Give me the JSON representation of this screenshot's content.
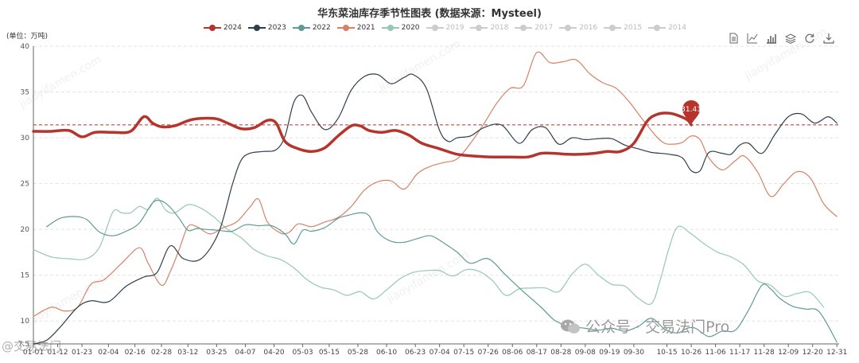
{
  "chart_data": {
    "type": "line",
    "title": "华东菜油库存季节性图表 (数据来源：Mysteel)",
    "ylabel": "(单位：万吨)",
    "ylim": [
      7.5,
      40
    ],
    "yticks": [
      7.5,
      10,
      15,
      20,
      25,
      30,
      35,
      40
    ],
    "xlim": [
      0,
      365
    ],
    "x_ticks": [
      {
        "label": "01-01",
        "day": 0
      },
      {
        "label": "01-12",
        "day": 11
      },
      {
        "label": "01-23",
        "day": 22
      },
      {
        "label": "02-04",
        "day": 34
      },
      {
        "label": "02-16",
        "day": 46
      },
      {
        "label": "02-28",
        "day": 58
      },
      {
        "label": "03-12",
        "day": 70
      },
      {
        "label": "03-25",
        "day": 83
      },
      {
        "label": "04-07",
        "day": 96
      },
      {
        "label": "04-20",
        "day": 109
      },
      {
        "label": "05-03",
        "day": 122
      },
      {
        "label": "05-15",
        "day": 134
      },
      {
        "label": "05-28",
        "day": 147
      },
      {
        "label": "06-10",
        "day": 160
      },
      {
        "label": "06-23",
        "day": 173
      },
      {
        "label": "07-04",
        "day": 184
      },
      {
        "label": "07-15",
        "day": 195
      },
      {
        "label": "07-26",
        "day": 206
      },
      {
        "label": "08-06",
        "day": 217
      },
      {
        "label": "08-17",
        "day": 228
      },
      {
        "label": "08-28",
        "day": 239
      },
      {
        "label": "09-08",
        "day": 250
      },
      {
        "label": "09-19",
        "day": 261
      },
      {
        "label": "09-30",
        "day": 272
      },
      {
        "label": "10-15",
        "day": 287
      },
      {
        "label": "10-26",
        "day": 298
      },
      {
        "label": "11-06",
        "day": 309
      },
      {
        "label": "11-17",
        "day": 320
      },
      {
        "label": "11-28",
        "day": 331
      },
      {
        "label": "12-09",
        "day": 342
      },
      {
        "label": "12-20",
        "day": 353
      },
      {
        "label": "12-31",
        "day": 364
      }
    ],
    "reference_line": 31.41,
    "mark_point": {
      "label": "31.41",
      "day": 298,
      "value": 31.41
    },
    "series": [
      {
        "name": "2024",
        "color": "#b5352d",
        "active": true,
        "width": 3.5,
        "x": [
          0,
          8,
          16,
          22,
          28,
          36,
          44,
          50,
          54,
          58,
          64,
          72,
          82,
          88,
          94,
          100,
          106,
          110,
          114,
          120,
          126,
          132,
          138,
          144,
          148,
          152,
          158,
          164,
          170,
          176,
          184,
          192,
          200,
          208,
          216,
          224,
          230,
          236,
          242,
          248,
          254,
          260,
          266,
          272,
          278,
          282,
          286,
          290,
          296,
          298
        ],
        "y": [
          30.7,
          30.7,
          30.8,
          30.1,
          30.6,
          30.6,
          30.7,
          32.3,
          31.6,
          31.2,
          31.3,
          32.0,
          32.1,
          31.6,
          31.0,
          31.1,
          31.9,
          31.6,
          29.6,
          28.8,
          28.5,
          28.9,
          30.2,
          31.3,
          31.3,
          30.8,
          30.6,
          30.8,
          30.3,
          29.4,
          28.8,
          28.2,
          28.0,
          27.9,
          27.9,
          27.9,
          28.3,
          28.3,
          28.2,
          28.2,
          28.3,
          28.5,
          28.5,
          29.4,
          31.8,
          32.5,
          32.7,
          32.6,
          32.0,
          31.41
        ]
      },
      {
        "name": "2023",
        "color": "#2f3e4c",
        "active": true,
        "width": 1.2,
        "x": [
          0,
          6,
          12,
          20,
          26,
          34,
          42,
          50,
          56,
          62,
          68,
          76,
          84,
          90,
          94,
          98,
          104,
          110,
          114,
          118,
          122,
          126,
          132,
          138,
          144,
          150,
          156,
          162,
          168,
          172,
          178,
          184,
          188,
          192,
          198,
          204,
          212,
          220,
          226,
          232,
          238,
          244,
          250,
          256,
          262,
          268,
          274,
          280,
          288,
          294,
          298,
          302,
          306,
          312,
          316,
          320,
          324,
          330,
          336,
          342,
          348,
          354,
          360,
          364
        ],
        "y": [
          7.5,
          7.9,
          9.3,
          11.5,
          12.2,
          12.1,
          13.8,
          14.8,
          15.3,
          18.2,
          16.8,
          16.8,
          19.7,
          24.8,
          27.5,
          28.3,
          28.5,
          28.7,
          30.2,
          33.9,
          34.6,
          32.8,
          30.9,
          32.1,
          35.2,
          36.7,
          36.9,
          35.9,
          36.6,
          36.9,
          35.4,
          30.8,
          29.6,
          30.0,
          30.2,
          31.1,
          31.4,
          29.4,
          30.9,
          31.1,
          29.3,
          30.0,
          29.8,
          29.9,
          29.9,
          29.2,
          28.8,
          28.4,
          28.2,
          27.8,
          26.4,
          26.4,
          28.4,
          28.3,
          28.2,
          29.2,
          29.4,
          28.3,
          30.4,
          32.3,
          32.6,
          31.6,
          32.3,
          31.6
        ]
      },
      {
        "name": "2022",
        "color": "#5e9b98",
        "active": true,
        "width": 1.2,
        "x": [
          6,
          12,
          18,
          24,
          30,
          36,
          42,
          48,
          54,
          58,
          62,
          66,
          70,
          74,
          78,
          84,
          90,
          96,
          102,
          108,
          114,
          118,
          122,
          126,
          132,
          138,
          142,
          148,
          152,
          156,
          162,
          168,
          174,
          180,
          186,
          192,
          198,
          206,
          214,
          222,
          230,
          236,
          242,
          250,
          256,
          262,
          268,
          274,
          280,
          286,
          292,
          296,
          300,
          306,
          312,
          318,
          324,
          330,
          334,
          338,
          344,
          350,
          356,
          364
        ],
        "y": [
          20.3,
          21.2,
          21.4,
          21.1,
          19.7,
          19.3,
          19.8,
          20.7,
          22.9,
          23.1,
          22.4,
          21.2,
          19.9,
          20.1,
          20.0,
          19.9,
          19.8,
          20.5,
          20.4,
          20.4,
          19.5,
          18.4,
          19.9,
          19.8,
          20.2,
          21.2,
          21.5,
          21.8,
          21.5,
          19.7,
          18.7,
          18.6,
          19.0,
          19.3,
          18.5,
          17.5,
          16.3,
          16.8,
          15.0,
          13.2,
          11.5,
          10.1,
          9.5,
          9.2,
          9.0,
          9.2,
          8.9,
          9.4,
          10.3,
          9.1,
          8.7,
          9.2,
          9.2,
          8.3,
          8.9,
          9.0,
          11.2,
          13.9,
          13.5,
          12.5,
          11.6,
          11.3,
          11.0,
          7.7
        ]
      },
      {
        "name": "2021",
        "color": "#d58265",
        "active": true,
        "width": 1.2,
        "x": [
          0,
          8,
          14,
          20,
          26,
          32,
          40,
          48,
          52,
          58,
          62,
          66,
          70,
          74,
          80,
          86,
          92,
          98,
          102,
          106,
          112,
          116,
          120,
          126,
          132,
          138,
          144,
          150,
          156,
          162,
          168,
          174,
          180,
          186,
          192,
          198,
          204,
          210,
          216,
          222,
          228,
          234,
          240,
          246,
          252,
          258,
          264,
          270,
          276,
          282,
          286,
          290,
          294,
          298,
          302,
          306,
          312,
          318,
          322,
          328,
          334,
          340,
          346,
          352,
          358,
          364
        ],
        "y": [
          10.5,
          11.5,
          11.1,
          11.5,
          14.0,
          14.5,
          16.3,
          18.0,
          16.3,
          13.9,
          15.4,
          17.8,
          20.3,
          20.3,
          19.5,
          20.2,
          20.8,
          22.4,
          23.3,
          20.8,
          19.6,
          19.7,
          20.6,
          20.3,
          20.8,
          21.3,
          22.5,
          24.3,
          25.2,
          25.3,
          24.4,
          26.1,
          26.9,
          27.3,
          27.7,
          29.4,
          31.5,
          33.8,
          35.4,
          35.7,
          39.3,
          38.2,
          38.3,
          38.5,
          37.0,
          36.0,
          35.4,
          33.9,
          32.0,
          30.2,
          29.4,
          29.3,
          29.5,
          30.2,
          29.8,
          27.8,
          26.5,
          27.5,
          28.0,
          26.3,
          23.6,
          25.0,
          26.3,
          25.6,
          22.8,
          21.4
        ]
      },
      {
        "name": "2020",
        "color": "#96c8b2",
        "active": true,
        "width": 1.2,
        "x": [
          0,
          8,
          16,
          24,
          30,
          36,
          40,
          44,
          48,
          52,
          56,
          60,
          64,
          70,
          76,
          82,
          88,
          94,
          100,
          106,
          112,
          118,
          124,
          130,
          136,
          142,
          148,
          154,
          160,
          166,
          172,
          178,
          184,
          190,
          196,
          202,
          208,
          214,
          220,
          226,
          232,
          238,
          244,
          250,
          256,
          262,
          268,
          274,
          280,
          284,
          288,
          292,
          298,
          304,
          310,
          316,
          322,
          328,
          334,
          340,
          346,
          352,
          358
        ],
        "y": [
          17.8,
          17.0,
          16.8,
          16.8,
          18.1,
          21.9,
          21.8,
          21.8,
          22.5,
          22.2,
          23.4,
          22.1,
          21.8,
          22.7,
          22.3,
          21.3,
          20.0,
          19.1,
          17.8,
          17.1,
          16.7,
          15.8,
          14.5,
          13.7,
          13.4,
          12.8,
          13.2,
          12.4,
          13.4,
          14.6,
          15.3,
          15.5,
          15.5,
          14.9,
          15.6,
          15.4,
          14.4,
          12.8,
          13.5,
          13.6,
          13.6,
          13.2,
          15.1,
          16.2,
          15.0,
          14.0,
          13.8,
          12.5,
          11.9,
          14.5,
          18.0,
          20.3,
          19.5,
          18.4,
          17.5,
          17.0,
          16.1,
          14.4,
          13.9,
          12.7,
          13.0,
          13.1,
          11.5
        ]
      },
      {
        "name": "2019",
        "color": "#cccccc",
        "active": false
      },
      {
        "name": "2018",
        "color": "#cccccc",
        "active": false
      },
      {
        "name": "2017",
        "color": "#cccccc",
        "active": false
      },
      {
        "name": "2016",
        "color": "#cccccc",
        "active": false
      },
      {
        "name": "2015",
        "color": "#cccccc",
        "active": false
      },
      {
        "name": "2014",
        "color": "#cccccc",
        "active": false
      }
    ],
    "grid": true,
    "legend_position": "top-center"
  },
  "watermark": {
    "text": "jiaoyifamen.com",
    "text2": "交易法门"
  },
  "footer": {
    "wechat": "公众号 · 交易法门Pro",
    "corner": "@交易法门"
  },
  "toolbox": [
    {
      "name": "data-view-icon",
      "title": "数据视图"
    },
    {
      "name": "line-chart-icon",
      "title": "折线图"
    },
    {
      "name": "bar-chart-icon",
      "title": "柱状图"
    },
    {
      "name": "stack-icon",
      "title": "堆叠"
    },
    {
      "name": "restore-icon",
      "title": "还原"
    },
    {
      "name": "save-image-icon",
      "title": "保存为图片"
    }
  ]
}
